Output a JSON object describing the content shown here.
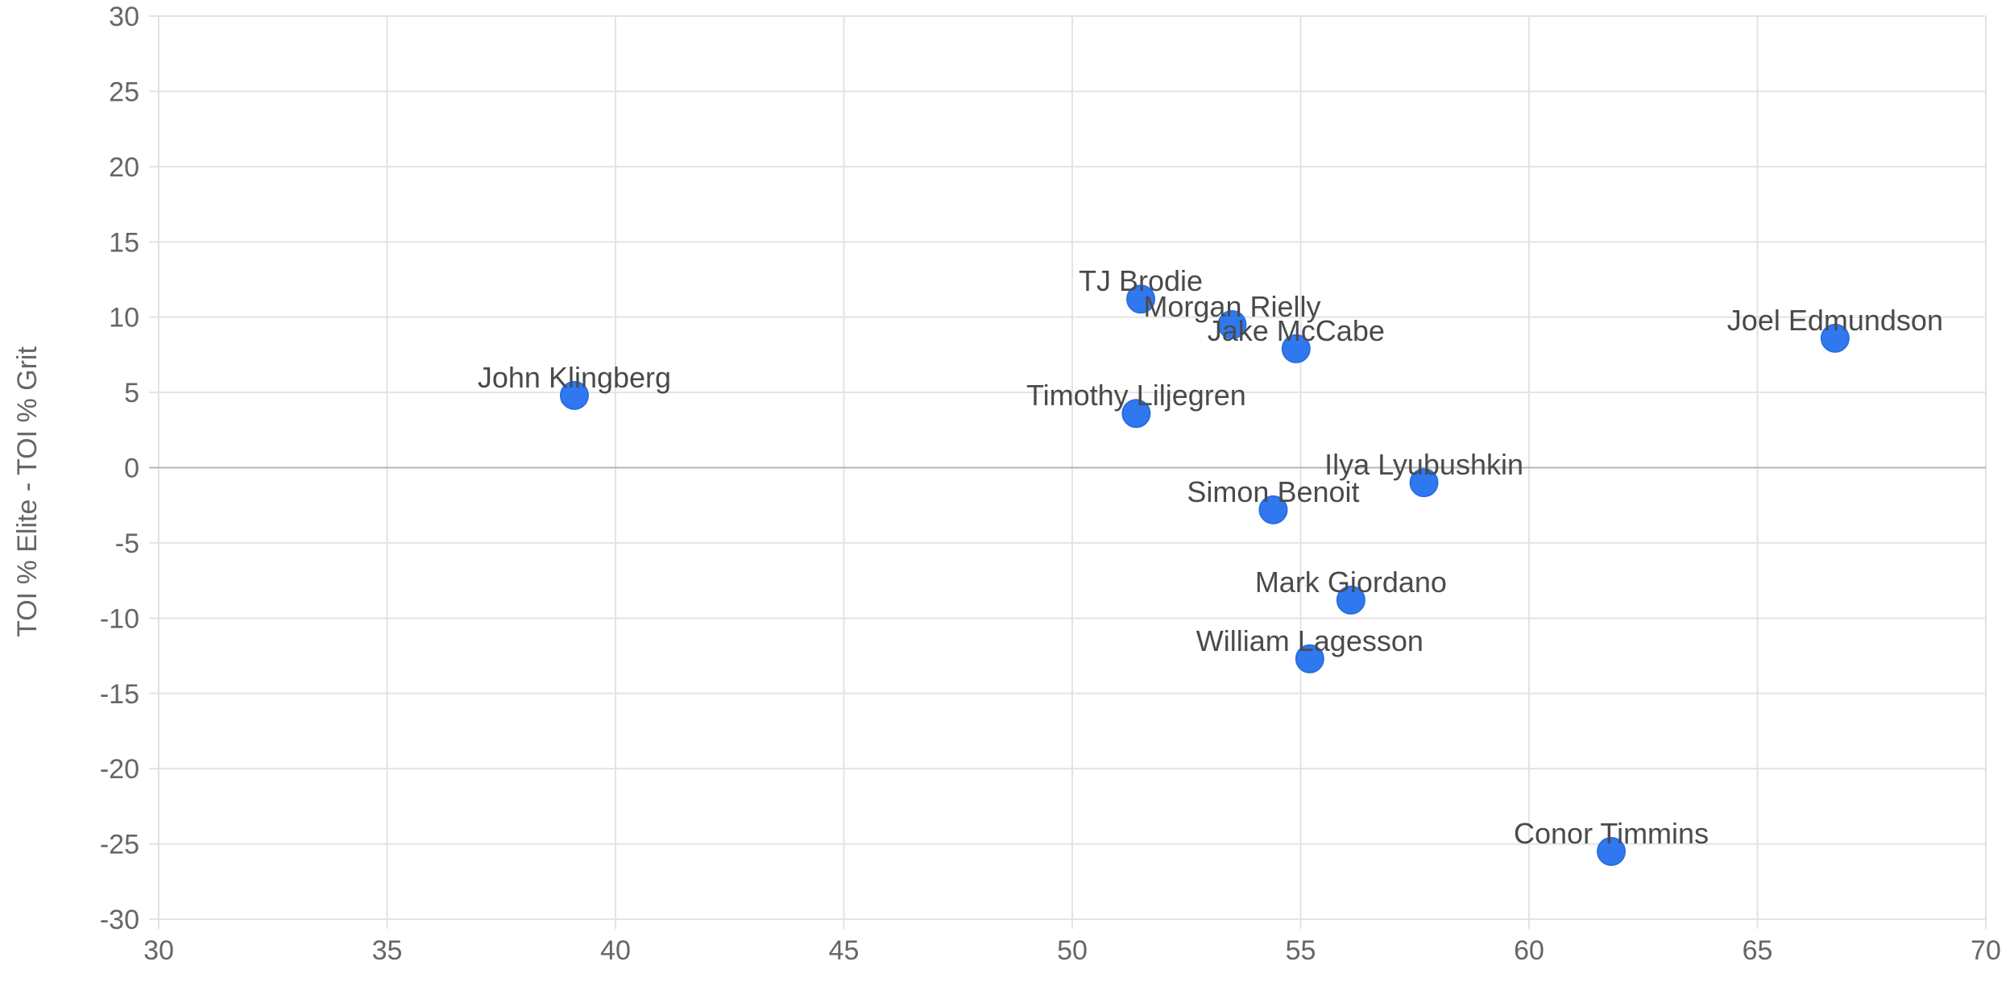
{
  "chart_data": {
    "type": "scatter",
    "title": "",
    "xlabel": "",
    "ylabel": "TOI % Elite - TOI % Grit",
    "xlim": [
      30,
      70
    ],
    "ylim": [
      -30,
      30
    ],
    "x_ticks": [
      "30",
      "35",
      "40",
      "45",
      "50",
      "55",
      "60",
      "65",
      "70"
    ],
    "y_ticks": [
      "30",
      "25",
      "20",
      "15",
      "10",
      "5",
      "0",
      "-5",
      "-10",
      "-15",
      "-20",
      "-25",
      "-30"
    ],
    "grid": true,
    "point_color": "#2f78f0",
    "points": [
      {
        "label": "John Klingberg",
        "x": 39.1,
        "y": 4.8
      },
      {
        "label": "TJ Brodie",
        "x": 51.5,
        "y": 11.2
      },
      {
        "label": "Morgan Rielly",
        "x": 53.5,
        "y": 9.5
      },
      {
        "label": "Jake McCabe",
        "x": 54.9,
        "y": 7.9
      },
      {
        "label": "Joel Edmundson",
        "x": 66.7,
        "y": 8.6
      },
      {
        "label": "Timothy Liljegren",
        "x": 51.4,
        "y": 3.6
      },
      {
        "label": "Ilya Lyubushkin",
        "x": 57.7,
        "y": -1.0
      },
      {
        "label": "Simon Benoit",
        "x": 54.4,
        "y": -2.8
      },
      {
        "label": "Mark Giordano",
        "x": 56.1,
        "y": -8.8
      },
      {
        "label": "William Lagesson",
        "x": 55.2,
        "y": -12.7
      },
      {
        "label": "Conor Timmins",
        "x": 61.8,
        "y": -25.5
      }
    ]
  }
}
